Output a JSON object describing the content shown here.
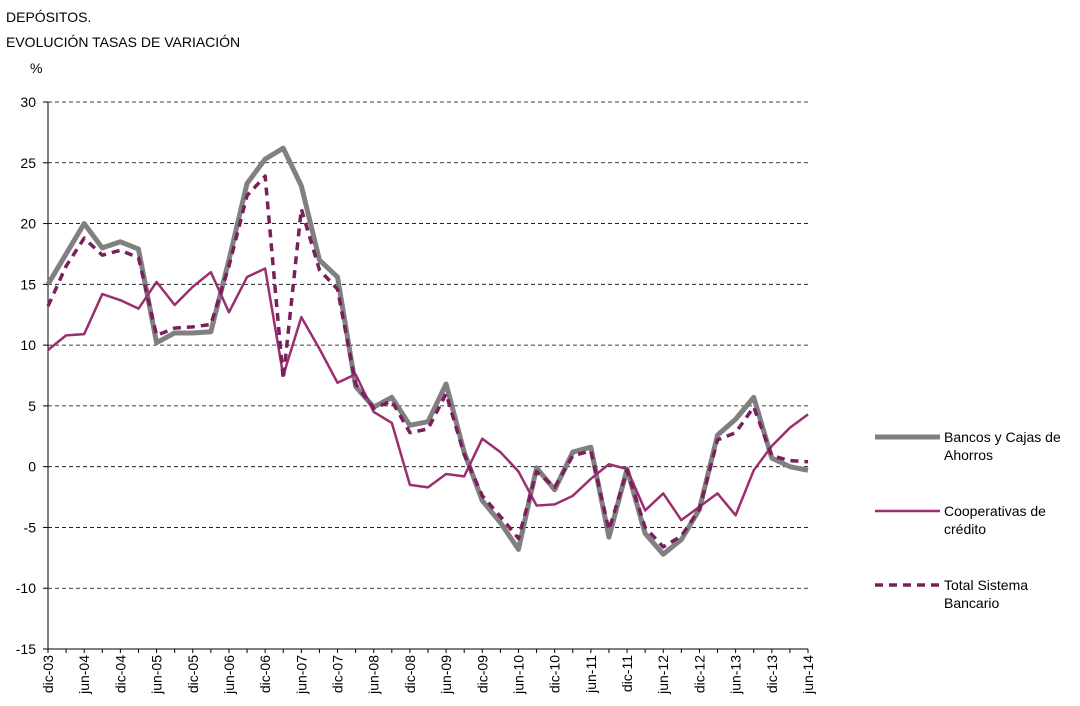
{
  "chart_data": {
    "type": "line",
    "title": [
      "DEPÓSITOS.",
      "EVOLUCIÓN TASAS DE VARIACIÓN"
    ],
    "y_label": "%",
    "categories": [
      "dic-03",
      null,
      "jun-04",
      null,
      "dic-04",
      null,
      "jun-05",
      null,
      "dic-05",
      null,
      "jun-06",
      null,
      "dic-06",
      null,
      "jun-07",
      null,
      "dic-07",
      null,
      "jun-08",
      null,
      "dic-08",
      null,
      "jun-09",
      null,
      "dic-09",
      null,
      "jun-10",
      null,
      "dic-10",
      null,
      "jun-11",
      null,
      "dic-11",
      null,
      "jun-12",
      null,
      "dic-12",
      null,
      "jun-13",
      null,
      "dic-13",
      null,
      "jun-14"
    ],
    "series": [
      {
        "name": "Bancos y Cajas de Ahorros",
        "color": "#808080",
        "line_width": 5,
        "line_style": "solid",
        "values": [
          15,
          17.5,
          20,
          18,
          18.5,
          17.9,
          10.2,
          11,
          11,
          11.1,
          17,
          23.3,
          25.3,
          26.2,
          23.1,
          17,
          15.6,
          6.6,
          4.9,
          5.7,
          3.4,
          3.7,
          6.8,
          1.2,
          -2.8,
          -4.6,
          -6.8,
          -0.1,
          -1.9,
          1.2,
          1.6,
          -5.8,
          -0.2,
          -5.5,
          -7.2,
          -6,
          -3.5,
          2.6,
          3.9,
          5.7,
          0.7,
          0,
          -0.3
        ]
      },
      {
        "name": "Cooperativas de crédito",
        "color": "#9b2e6e",
        "line_width": 2.5,
        "line_style": "solid",
        "values": [
          9.6,
          10.8,
          10.9,
          14.2,
          13.7,
          13,
          15.2,
          13.3,
          14.8,
          16,
          12.7,
          15.6,
          16.3,
          7.5,
          12.3,
          9.7,
          6.9,
          7.6,
          4.5,
          3.6,
          -1.5,
          -1.7,
          -0.6,
          -0.8,
          2.3,
          1.2,
          -0.4,
          -3.2,
          -3.1,
          -2.4,
          -1,
          0.2,
          -0.2,
          -3.6,
          -2.2,
          -4.4,
          -3.3,
          -2.2,
          -4,
          -0.3,
          1.7,
          3.2,
          4.3
        ]
      },
      {
        "name": "Total Sistema Bancario",
        "color": "#7a1f5c",
        "line_width": 3.5,
        "line_style": "dashed",
        "values": [
          13.2,
          16.5,
          18.8,
          17.4,
          17.8,
          17.2,
          10.8,
          11.4,
          11.5,
          11.7,
          16.5,
          22.3,
          23.9,
          7.2,
          21.2,
          16.2,
          14.6,
          6.8,
          4.8,
          5.4,
          2.8,
          3.1,
          6,
          1,
          -2.4,
          -4.1,
          -5.9,
          -0.4,
          -1.7,
          0.9,
          1.3,
          -5.2,
          -0.3,
          -5,
          -6.6,
          -5.7,
          -3.5,
          2.2,
          2.8,
          4.9,
          0.9,
          0.5,
          0.4
        ]
      }
    ],
    "ylim": [
      -15,
      30
    ],
    "yticks": [
      -15,
      -10,
      -5,
      0,
      5,
      10,
      15,
      20,
      25,
      30
    ],
    "grid": true,
    "legend": "right"
  }
}
